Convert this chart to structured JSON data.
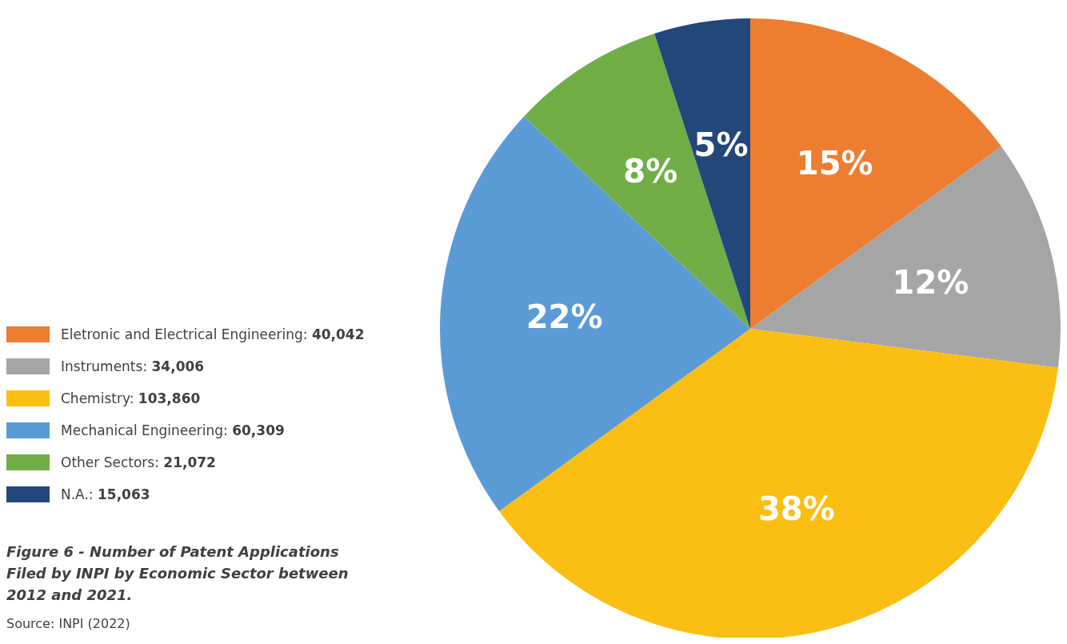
{
  "chart_data": {
    "type": "pie",
    "title": "Figure 6 - Number of Patent Applications Filed by INPI by Economic Sector between 2012 and 2021.",
    "annotations": [
      "Source: INPI (2022)"
    ],
    "categories": [
      "Eletronic and Electrical Engineering: 40,042",
      "Instruments: 34,006",
      "Chemistry: 103,860",
      "Mechanical Engineering: 60,309",
      "Other Sectors: 21,072",
      "N.A.: 15,063"
    ],
    "values": [
      15,
      12,
      38,
      22,
      8,
      5
    ],
    "colors": [
      "#ed7d31",
      "#a5a5a5",
      "#fbbf13",
      "#5b9bd5",
      "#70ad47",
      "#23467b"
    ],
    "value_labels": [
      "15%",
      "12%",
      "38%",
      "22%",
      "8%",
      "5%"
    ],
    "legend": "left"
  }
}
